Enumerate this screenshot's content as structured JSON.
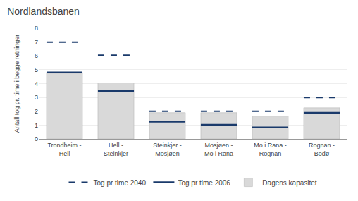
{
  "chart_data": {
    "type": "bar",
    "title": "Nordlandsbanen",
    "ylabel": "Antall tog pr. time i begge retninger",
    "categories": [
      "Trondheim -\nHell",
      "Hell -\nSteinkjer",
      "Steinkjer -\nMosjøen",
      "Mosjøen -\nMo i Rana",
      "Mo i Rana -\nRognan",
      "Rognan -\nBodø"
    ],
    "series": [
      {
        "name": "Tog pr time 2040",
        "type": "line",
        "line_style": "dashed",
        "color": "#1a3a6b",
        "values": [
          7.0,
          6.05,
          2.0,
          2.0,
          2.0,
          3.0
        ]
      },
      {
        "name": "Tog pr time 2006",
        "type": "line",
        "line_style": "solid",
        "color": "#1a3a6b",
        "values": [
          4.8,
          3.45,
          1.25,
          1.02,
          0.83,
          1.88
        ]
      },
      {
        "name": "Dagens kapasitet",
        "type": "bar",
        "color": "#d9d9d9",
        "values": [
          4.75,
          4.05,
          1.9,
          1.9,
          1.65,
          2.25
        ]
      }
    ],
    "ylim": [
      0,
      8
    ],
    "yticks": [
      0,
      1,
      2,
      3,
      4,
      5,
      6,
      7,
      8
    ],
    "grid": true,
    "legend": "bottom"
  }
}
